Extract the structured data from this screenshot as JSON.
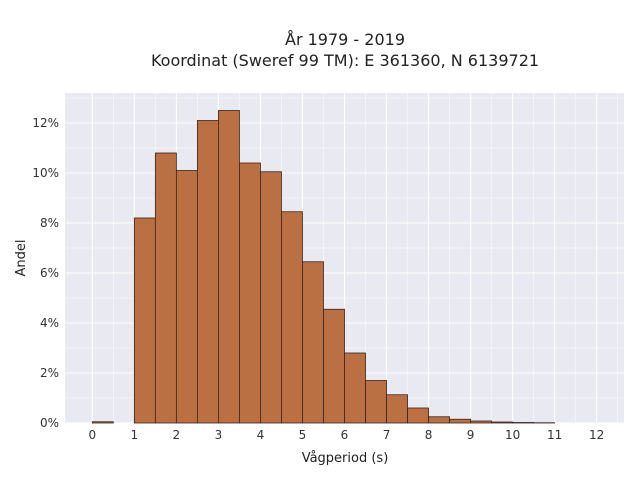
{
  "chart_data": {
    "type": "bar",
    "title": "År 1979 - 2019",
    "subtitle": "Koordinat (Sweref 99 TM): E 361360, N 6139721",
    "xlabel": "Vågperiod (s)",
    "ylabel": "Andel",
    "bin_width": 0.5,
    "bin_starts": [
      0,
      0.5,
      1,
      1.5,
      2,
      2.5,
      3,
      3.5,
      4,
      4.5,
      5,
      5.5,
      6,
      6.5,
      7,
      7.5,
      8,
      8.5,
      9,
      9.5,
      10,
      10.5,
      11,
      11.5
    ],
    "values": [
      0.0005,
      0,
      0.082,
      0.108,
      0.101,
      0.121,
      0.125,
      0.104,
      0.1005,
      0.0845,
      0.0645,
      0.0455,
      0.028,
      0.017,
      0.0113,
      0.006,
      0.0025,
      0.0015,
      0.0008,
      0.0004,
      0.0002,
      0.0001,
      0,
      0
    ],
    "xlim": [
      -0.65,
      12.65
    ],
    "ylim": [
      0,
      0.132
    ],
    "xticks": [
      0,
      1,
      2,
      3,
      4,
      5,
      6,
      7,
      8,
      9,
      10,
      11,
      12
    ],
    "yticks": [
      0,
      0.02,
      0.04,
      0.06,
      0.08,
      0.1,
      0.12
    ],
    "ytick_labels": [
      "0%",
      "2%",
      "4%",
      "6%",
      "8%",
      "10%",
      "12%"
    ],
    "grid": true,
    "colors": {
      "bar_fill": "#bb7044",
      "bar_edge": "#3a2418",
      "plot_background": "#e9e9f1",
      "grid": "#ffffff"
    }
  }
}
